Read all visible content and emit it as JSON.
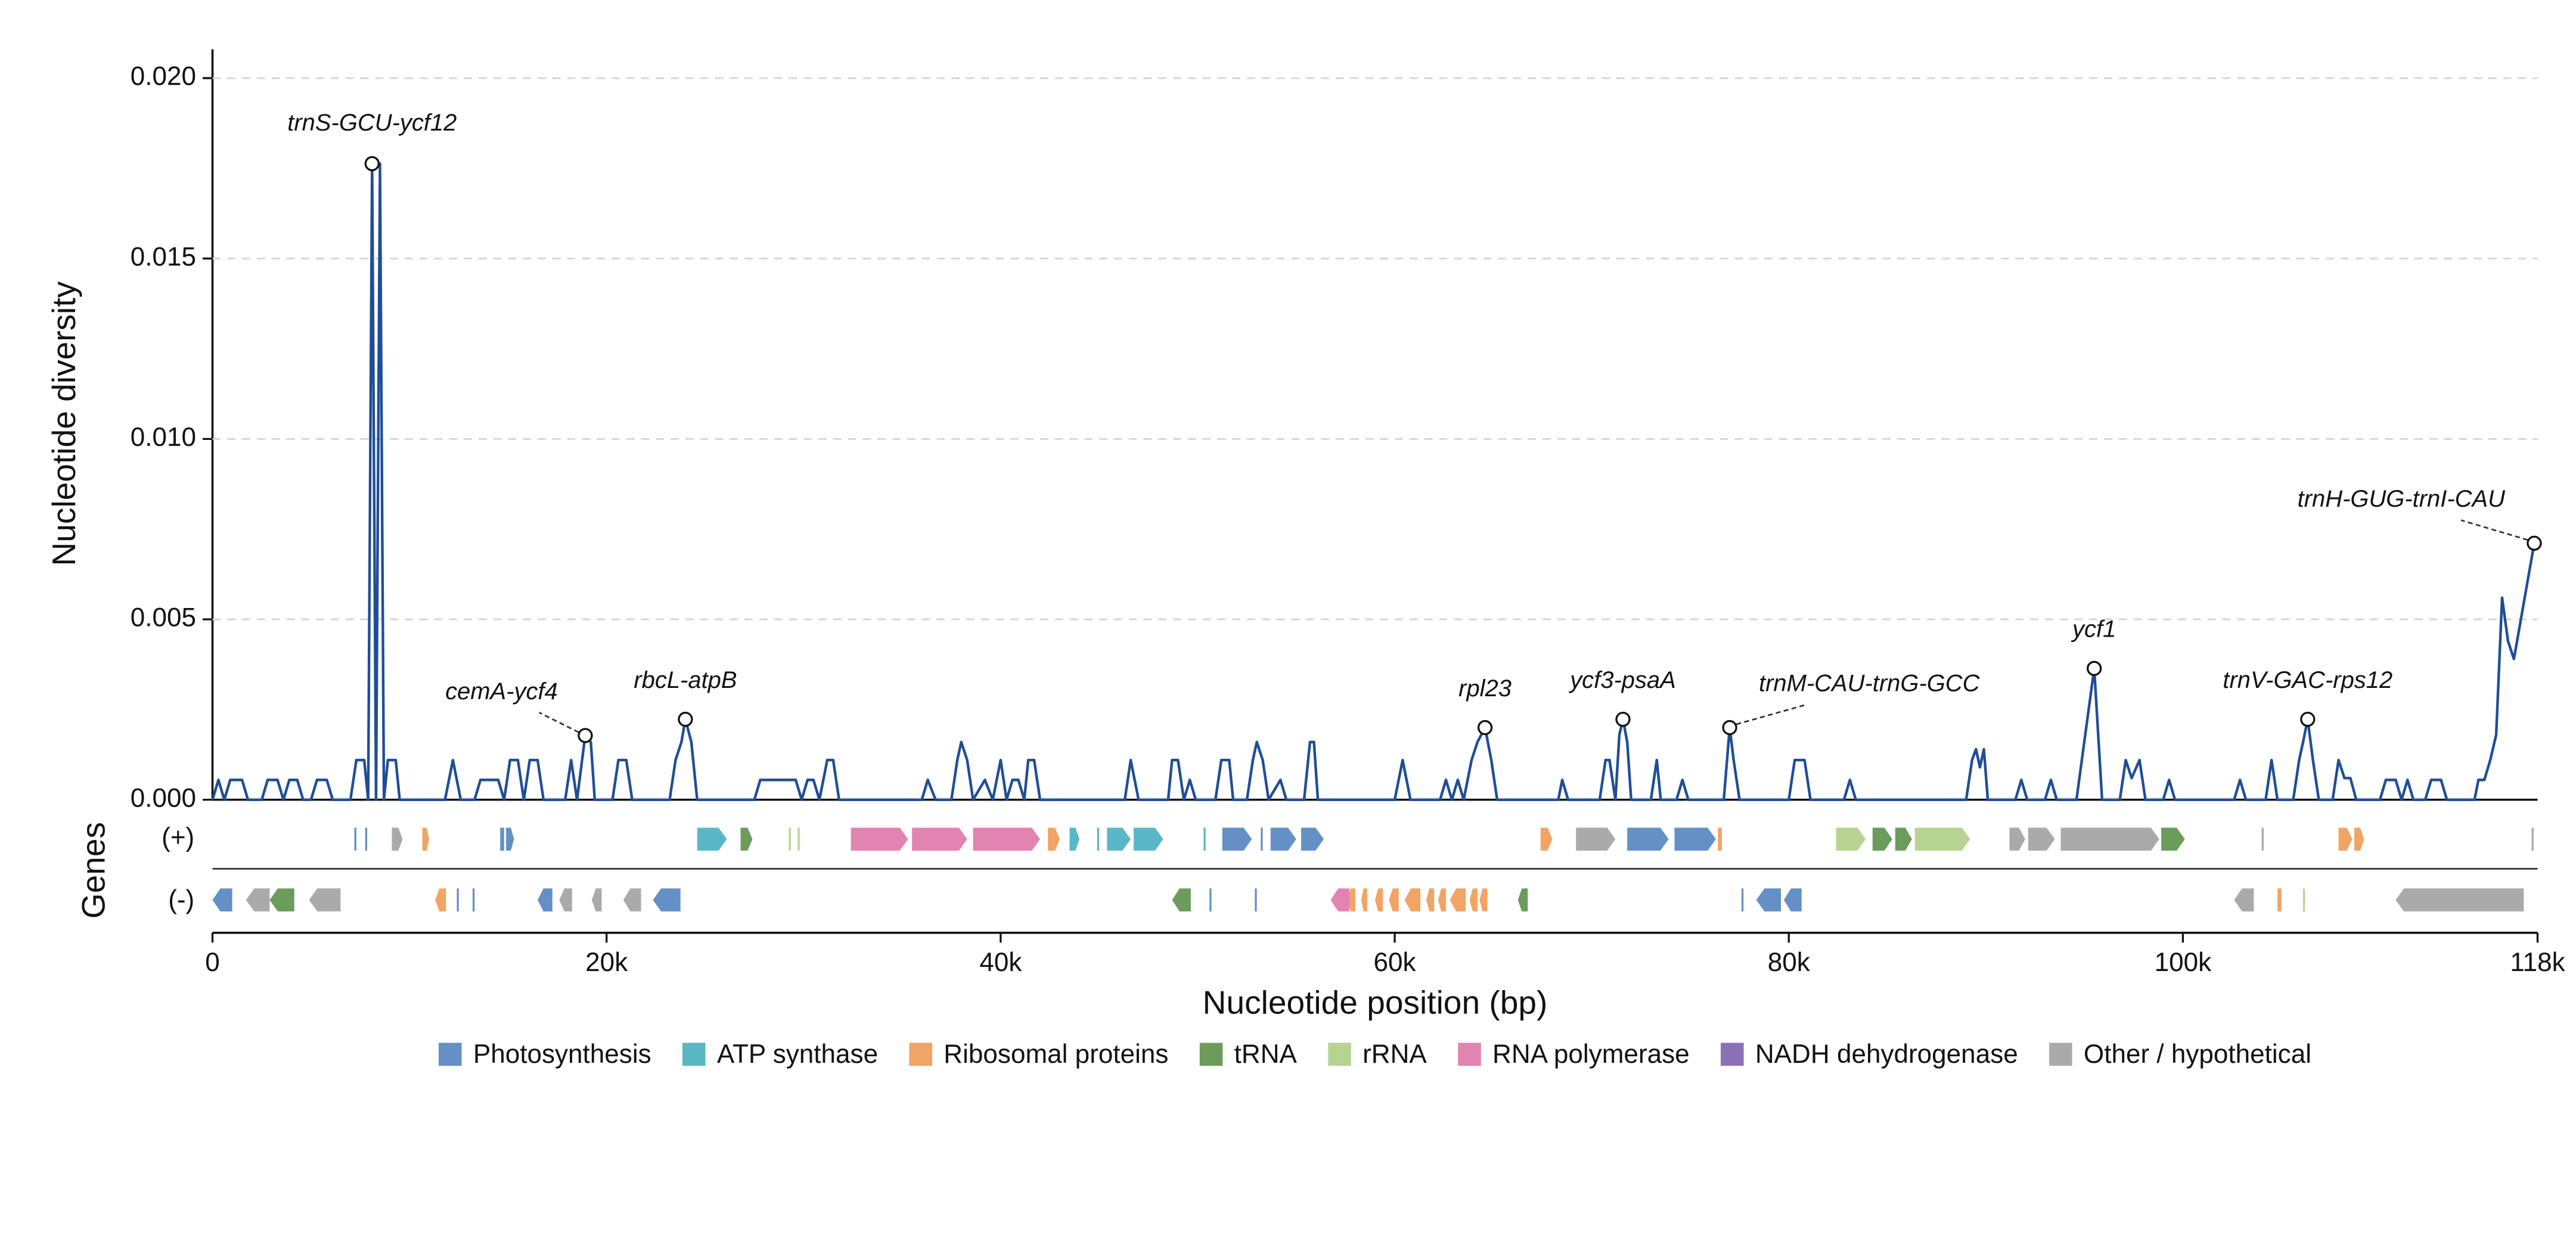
{
  "chart_data": {
    "type": "line",
    "ylabel": "Nucleotide diversity",
    "xlabel": "Nucleotide position (bp)",
    "genes_label": "Genes",
    "plus_label": "(+)",
    "minus_label": "(-)",
    "line_color": "#1f4e96",
    "grid": true,
    "xlim": [
      0,
      118000
    ],
    "ylim": [
      0,
      0.0208
    ],
    "xticks": [
      0,
      {
        "value": 20000,
        "label": "20k"
      },
      {
        "value": 40000,
        "label": "40k"
      },
      {
        "value": 60000,
        "label": "60k"
      },
      {
        "value": 80000,
        "label": "80k"
      },
      {
        "value": 100000,
        "label": "100k"
      },
      {
        "value": 118000,
        "label": "118k"
      }
    ],
    "yticks": [
      {
        "value": 0,
        "label": "0.000"
      },
      {
        "value": 0.005,
        "label": "0.005"
      },
      {
        "value": 0.01,
        "label": "0.010"
      },
      {
        "value": 0.015,
        "label": "0.015"
      },
      {
        "value": 0.02,
        "label": "0.020"
      }
    ],
    "x": [
      0,
      300,
      600,
      900,
      1500,
      1800,
      2500,
      2800,
      3300,
      3600,
      3900,
      4300,
      4600,
      5000,
      5300,
      5800,
      6100,
      7000,
      7300,
      7700,
      7900,
      8100,
      8300,
      8500,
      8700,
      8900,
      9300,
      9500,
      11800,
      12200,
      12600,
      13300,
      13600,
      14500,
      14800,
      15100,
      15500,
      15800,
      16100,
      16500,
      16800,
      17900,
      18200,
      18500,
      18917,
      19200,
      19400,
      20300,
      20600,
      21000,
      21300,
      23200,
      23500,
      23800,
      24000,
      24300,
      24600,
      27500,
      27800,
      29600,
      29900,
      30200,
      30500,
      30800,
      31200,
      31500,
      31800,
      36000,
      36300,
      36700,
      37500,
      37800,
      38000,
      38300,
      38600,
      39200,
      39600,
      40000,
      40300,
      40600,
      40900,
      41200,
      41400,
      41700,
      42000,
      46300,
      46600,
      47000,
      48500,
      48700,
      49000,
      49300,
      49600,
      49900,
      50900,
      51200,
      51600,
      51800,
      52500,
      52800,
      53000,
      53300,
      53600,
      54200,
      54500,
      55400,
      55700,
      55900,
      56100,
      60000,
      60400,
      60800,
      62300,
      62600,
      62900,
      63200,
      63500,
      63900,
      64200,
      64583,
      64900,
      65200,
      68300,
      68500,
      68800,
      70400,
      70700,
      70900,
      71200,
      71400,
      71583,
      71800,
      72000,
      73000,
      73300,
      73500,
      74300,
      74600,
      74900,
      76700,
      77000,
      77200,
      77500,
      80000,
      80300,
      80800,
      81100,
      82800,
      83100,
      83400,
      89000,
      89300,
      89500,
      89700,
      89900,
      90100,
      91500,
      91800,
      92100,
      93000,
      93300,
      93600,
      94600,
      95500,
      95900,
      96800,
      97100,
      97400,
      97800,
      98100,
      99000,
      99300,
      99600,
      102600,
      102900,
      103200,
      104200,
      104500,
      104800,
      105600,
      105900,
      106100,
      106333,
      106600,
      106900,
      107600,
      107900,
      108200,
      108500,
      108800,
      110000,
      110300,
      110800,
      111100,
      111400,
      111700,
      112300,
      112600,
      113100,
      113400,
      114800,
      115000,
      115300,
      115600,
      115900,
      116200,
      116500,
      116800,
      117833
    ],
    "values": [
      0,
      0.00055,
      0,
      0.00055,
      0.00055,
      0,
      0,
      0.00055,
      0.00055,
      0,
      0.00055,
      0.00055,
      0,
      0,
      0.00055,
      0.00055,
      0,
      0,
      0.0011,
      0.0011,
      0,
      0.01763,
      0,
      0.01763,
      0,
      0.0011,
      0.0011,
      0,
      0,
      0.0011,
      0,
      0,
      0.00055,
      0.00055,
      0,
      0.0011,
      0.0011,
      0,
      0.0011,
      0.0011,
      0,
      0,
      0.0011,
      0,
      0.00178,
      0.0016,
      0,
      0,
      0.0011,
      0.0011,
      0,
      0,
      0.0011,
      0.0016,
      0.00223,
      0.0016,
      0,
      0,
      0.00055,
      0.00055,
      0,
      0.00055,
      0.00055,
      0,
      0.0011,
      0.0011,
      0,
      0,
      0.00055,
      0,
      0,
      0.0011,
      0.0016,
      0.0011,
      0,
      0.00055,
      0,
      0.0011,
      0,
      0.00055,
      0.00055,
      0,
      0.0011,
      0.0011,
      0,
      0,
      0.0011,
      0,
      0,
      0.0011,
      0.0011,
      0,
      0.00055,
      0,
      0,
      0.0011,
      0.0011,
      0,
      0,
      0.0011,
      0.0016,
      0.0011,
      0,
      0.00055,
      0,
      0,
      0.0016,
      0.0016,
      0,
      0,
      0.0011,
      0,
      0,
      0.00055,
      0,
      0.00055,
      0,
      0.0011,
      0.0016,
      0.002,
      0.0011,
      0,
      0,
      0.00055,
      0,
      0,
      0.0011,
      0.0011,
      0,
      0.0018,
      0.00223,
      0.0016,
      0,
      0,
      0.0011,
      0,
      0,
      0.00055,
      0,
      0,
      0.002,
      0.0011,
      0,
      0,
      0.0011,
      0.0011,
      0,
      0,
      0.00055,
      0,
      0,
      0.0011,
      0.0014,
      0.0009,
      0.0014,
      0,
      0,
      0.00055,
      0,
      0,
      0.00055,
      0,
      0,
      0.00364,
      0,
      0,
      0.0011,
      0.0006,
      0.0011,
      0,
      0,
      0.00055,
      0,
      0,
      0.00055,
      0,
      0,
      0.0011,
      0,
      0,
      0.0011,
      0.0016,
      0.00223,
      0.0011,
      0,
      0,
      0.0011,
      0.0006,
      0.0006,
      0,
      0,
      0.00055,
      0.00055,
      0,
      0.00055,
      0,
      0,
      0.00055,
      0.00055,
      0,
      0,
      0.00055,
      0.00055,
      0.0011,
      0.0018,
      0.0056,
      0.0044,
      0.0039,
      0.00711
    ],
    "annotations": [
      {
        "text": "trnS-GCU-ycf12",
        "x": 8100,
        "y": 0.01763
      },
      {
        "text": "cemA-ycf4",
        "x": 18917,
        "y": 0.00178
      },
      {
        "text": "rbcL-atpB",
        "x": 24000,
        "y": 0.00223
      },
      {
        "text": "rpl23",
        "x": 64583,
        "y": 0.002
      },
      {
        "text": "ycf3-psaA",
        "x": 71583,
        "y": 0.00223
      },
      {
        "text": "trnM-CAU-trnG-GCC",
        "x": 77000,
        "y": 0.002
      },
      {
        "text": "ycf1",
        "x": 95500,
        "y": 0.00364
      },
      {
        "text": "trnV-GAC-rps12",
        "x": 106333,
        "y": 0.00223
      },
      {
        "text": "trnH-GUG-trnI-CAU",
        "x": 117833,
        "y": 0.00711
      }
    ],
    "gene_categories": [
      {
        "name": "Photosynthesis",
        "color": "#6590c6",
        "plus": [
          [
            7200,
            7300
          ],
          [
            7750,
            7850
          ],
          [
            14600,
            14800
          ],
          [
            14900,
            15300
          ],
          [
            51250,
            52750
          ],
          [
            53200,
            53300
          ],
          [
            53700,
            55000
          ],
          [
            55250,
            56400
          ],
          [
            71800,
            73900
          ],
          [
            74200,
            76300
          ]
        ],
        "minus": [
          [
            0,
            1000
          ],
          [
            12400,
            12500
          ],
          [
            13200,
            13300
          ],
          [
            16500,
            17250
          ],
          [
            22350,
            23750
          ],
          [
            52900,
            53000
          ],
          [
            50600,
            50700
          ],
          [
            77600,
            77700
          ],
          [
            78350,
            79600
          ],
          [
            79750,
            80650
          ]
        ]
      },
      {
        "name": "ATP synthase",
        "color": "#5ab7c6",
        "plus": [
          [
            24600,
            26100
          ],
          [
            43500,
            44000
          ],
          [
            44900,
            45000
          ],
          [
            45400,
            46600
          ],
          [
            46750,
            48250
          ],
          [
            50300,
            50400
          ]
        ],
        "minus": []
      },
      {
        "name": "Ribosomal proteins",
        "color": "#f2a464",
        "plus": [
          [
            10650,
            11000
          ],
          [
            42400,
            43000
          ],
          [
            67400,
            68000
          ],
          [
            76400,
            76600
          ],
          [
            107900,
            108600
          ],
          [
            108700,
            109200
          ]
        ],
        "minus": [
          [
            11300,
            11850
          ],
          [
            57600,
            58000
          ],
          [
            58300,
            58600
          ],
          [
            59000,
            59400
          ],
          [
            59700,
            60200
          ],
          [
            60500,
            61300
          ],
          [
            61600,
            62000
          ],
          [
            62200,
            62600
          ],
          [
            62800,
            63600
          ],
          [
            63800,
            64200
          ],
          [
            64300,
            64700
          ],
          [
            104800,
            105000
          ]
        ]
      },
      {
        "name": "tRNA",
        "color": "#6c9c5c",
        "plus": [
          [
            26800,
            27400
          ],
          [
            84250,
            85250
          ],
          [
            85400,
            86250
          ],
          [
            98900,
            100100
          ]
        ],
        "minus": [
          [
            2900,
            4150
          ],
          [
            48700,
            49650
          ],
          [
            66250,
            66750
          ]
        ]
      },
      {
        "name": "rRNA",
        "color": "#b6d392",
        "plus": [
          [
            29250,
            29350
          ],
          [
            29700,
            29800
          ],
          [
            82400,
            83900
          ],
          [
            86400,
            89200
          ]
        ],
        "minus": [
          [
            106100,
            106200
          ]
        ]
      },
      {
        "name": "RNA polymerase",
        "color": "#e284b2",
        "plus": [
          [
            32400,
            35300
          ],
          [
            35500,
            38300
          ],
          [
            38600,
            42000
          ]
        ],
        "minus": [
          [
            56750,
            57700
          ]
        ]
      },
      {
        "name": "NADH dehydrogenase",
        "color": "#8b70b6",
        "plus": [],
        "minus": []
      },
      {
        "name": "Other / hypothetical",
        "color": "#aaaaaa",
        "plus": [
          [
            9100,
            9650
          ],
          [
            69200,
            71200
          ],
          [
            91200,
            92000
          ],
          [
            92150,
            93500
          ],
          [
            93800,
            98800
          ],
          [
            104000,
            104100
          ],
          [
            117700,
            117800
          ]
        ],
        "minus": [
          [
            1700,
            2900
          ],
          [
            4900,
            6500
          ],
          [
            17600,
            18250
          ],
          [
            19250,
            19750
          ],
          [
            20850,
            21750
          ],
          [
            102600,
            103600
          ],
          [
            110800,
            117300
          ]
        ]
      }
    ]
  }
}
